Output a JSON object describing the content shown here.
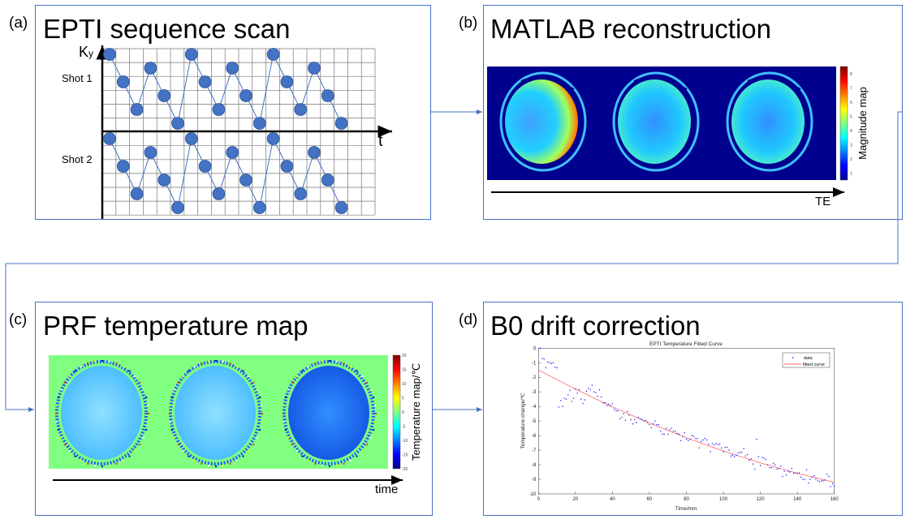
{
  "panels": {
    "a": {
      "label": "(a)",
      "title": "EPTI sequence scan",
      "y_axis": "K",
      "y_axis_sub": "y",
      "x_axis": "t",
      "shot1": "Shot 1",
      "shot2": "Shot 2",
      "ky_sequence": [
        0,
        2,
        4,
        1,
        3,
        5,
        0,
        2,
        4,
        1,
        3,
        5,
        0,
        2,
        4,
        1,
        3,
        5
      ]
    },
    "b": {
      "label": "(b)",
      "title": "MATLAB reconstruction",
      "colorbar_label": "Magnitude map",
      "colorbar_ticks": [
        "1",
        "2",
        "3",
        "4",
        "5",
        "6",
        "7",
        "8"
      ],
      "axis_label": "TE"
    },
    "c": {
      "label": "(c)",
      "title": "PRF temperature map",
      "colorbar_label": "Temperature map/℃",
      "colorbar_ticks": [
        "-20",
        "-15",
        "-10",
        "-5",
        "0",
        "5",
        "10",
        "15",
        "20"
      ],
      "axis_label": "time"
    },
    "d": {
      "label": "(d)",
      "title": "B0 drift correction"
    }
  },
  "colors": {
    "border": "#4472c4",
    "dot": "#4472c4",
    "mag_bg": "#00008f",
    "temp_bg": "#80ff80",
    "data": "#0000ff",
    "fit": "#ff6666"
  },
  "chart_data": {
    "type": "scatter",
    "title": "EPTI Temperature Fitted Curve",
    "xlabel": "Time/min",
    "ylabel": "Temperature change/℃",
    "xlim": [
      0,
      160
    ],
    "ylim": [
      -10,
      0
    ],
    "xticks": [
      "0",
      "20",
      "40",
      "60",
      "80",
      "100",
      "120",
      "140",
      "160"
    ],
    "yticks": [
      "0",
      "-1",
      "-2",
      "-3",
      "-4",
      "-5",
      "-6",
      "-7",
      "-8",
      "-9",
      "-10"
    ],
    "legend_position": "top-right",
    "series": [
      {
        "name": "data",
        "style": "points",
        "x": [
          1,
          2,
          3,
          4,
          5,
          6,
          7,
          8,
          9,
          10,
          11,
          12,
          13,
          14,
          15,
          16,
          17,
          18,
          19,
          20,
          21,
          22,
          23,
          24,
          25,
          26,
          27,
          28,
          29,
          30,
          31,
          32,
          33,
          34,
          35,
          36,
          37,
          38,
          39,
          40,
          41,
          42,
          43,
          44,
          45,
          46,
          47,
          48,
          49,
          50,
          51,
          52,
          53,
          54,
          55,
          56,
          57,
          58,
          59,
          60,
          61,
          62,
          63,
          64,
          65,
          66,
          67,
          68,
          69,
          70,
          71,
          72,
          73,
          74,
          75,
          76,
          77,
          78,
          79,
          80,
          81,
          82,
          83,
          84,
          85,
          86,
          87,
          88,
          89,
          90,
          91,
          92,
          93,
          94,
          95,
          96,
          97,
          98,
          99,
          100,
          101,
          102,
          103,
          104,
          105,
          106,
          107,
          108,
          109,
          110,
          111,
          112,
          113,
          114,
          115,
          116,
          117,
          118,
          119,
          120,
          121,
          122,
          123,
          124,
          125,
          126,
          127,
          128,
          129,
          130,
          131,
          132,
          133,
          134,
          135,
          136,
          137,
          138,
          139,
          140,
          141,
          142,
          143,
          144,
          145,
          146,
          147,
          148,
          149,
          150,
          151,
          152,
          153,
          154,
          155,
          156,
          157,
          158,
          159,
          160
        ],
        "y": [
          0,
          -0.7,
          -0.75,
          -1.35,
          -0.95,
          -1.0,
          -1.05,
          -1.0,
          -1.3,
          -1.35,
          -4.05,
          -3.6,
          -4.0,
          -3.45,
          -3.5,
          -3.2,
          -2.9,
          -3.65,
          -3.45,
          -2.8,
          -3.1,
          -2.85,
          -3.5,
          -3.8,
          -3.55,
          -2.95,
          -2.75,
          -2.85,
          -2.55,
          -3.0,
          -3.05,
          -3.3,
          -2.85,
          -3.35,
          -3.75,
          -3.75,
          -3.95,
          -3.85,
          -3.95,
          -3.8,
          -4.2,
          -4.3,
          -4.3,
          -4.85,
          -4.75,
          -4.5,
          -4.95,
          -4.35,
          -4.6,
          -4.9,
          -5.2,
          -4.9,
          -5.1,
          -4.75,
          -4.85,
          -4.9,
          -5.0,
          -4.95,
          -5.1,
          -5.25,
          -5.45,
          -5.2,
          -5.0,
          -5.25,
          -5.25,
          -5.7,
          -5.9,
          -5.9,
          -5.5,
          -5.9,
          -5.6,
          -5.5,
          -5.7,
          -5.7,
          -5.85,
          -5.9,
          -6.35,
          -6.05,
          -5.8,
          -6.25,
          -6.35,
          -6.25,
          -6.0,
          -6.05,
          -6.2,
          -6.2,
          -6.85,
          -6.4,
          -6.3,
          -6.2,
          -6.3,
          -6.6,
          -7.1,
          -6.55,
          -6.65,
          -6.55,
          -6.6,
          -6.6,
          -6.85,
          -7.1,
          -6.8,
          -6.8,
          -7.0,
          -7.4,
          -7.35,
          -7.45,
          -7.35,
          -7.2,
          -7.15,
          -7.15,
          -6.9,
          -7.4,
          -7.3,
          -7.7,
          -7.6,
          -7.95,
          -8.3,
          -6.25,
          -7.45,
          -8.05,
          -7.5,
          -7.55,
          -7.65,
          -8.0,
          -8.2,
          -8.2,
          -7.9,
          -8.0,
          -8.3,
          -8.25,
          -8.1,
          -8.8,
          -8.45,
          -8.7,
          -8.45,
          -8.5,
          -8.25,
          -8.6,
          -8.55,
          -8.6,
          -8.55,
          -8.85,
          -9.0,
          -9.0,
          -8.35,
          -9.25,
          -9.0,
          -8.85,
          -8.75,
          -9.0,
          -9.1,
          -9.15,
          -9.1,
          -9.1,
          -9.05,
          -8.65,
          -8.8,
          -9.5,
          -9.3,
          -9.45
        ]
      },
      {
        "name": "fitted curve",
        "style": "line",
        "x": [
          0,
          20,
          40,
          60,
          80,
          100,
          120,
          140,
          160
        ],
        "y": [
          -1.5,
          -2.81,
          -4.03,
          -5.14,
          -6.15,
          -7.06,
          -7.87,
          -8.59,
          -9.2
        ]
      }
    ]
  }
}
